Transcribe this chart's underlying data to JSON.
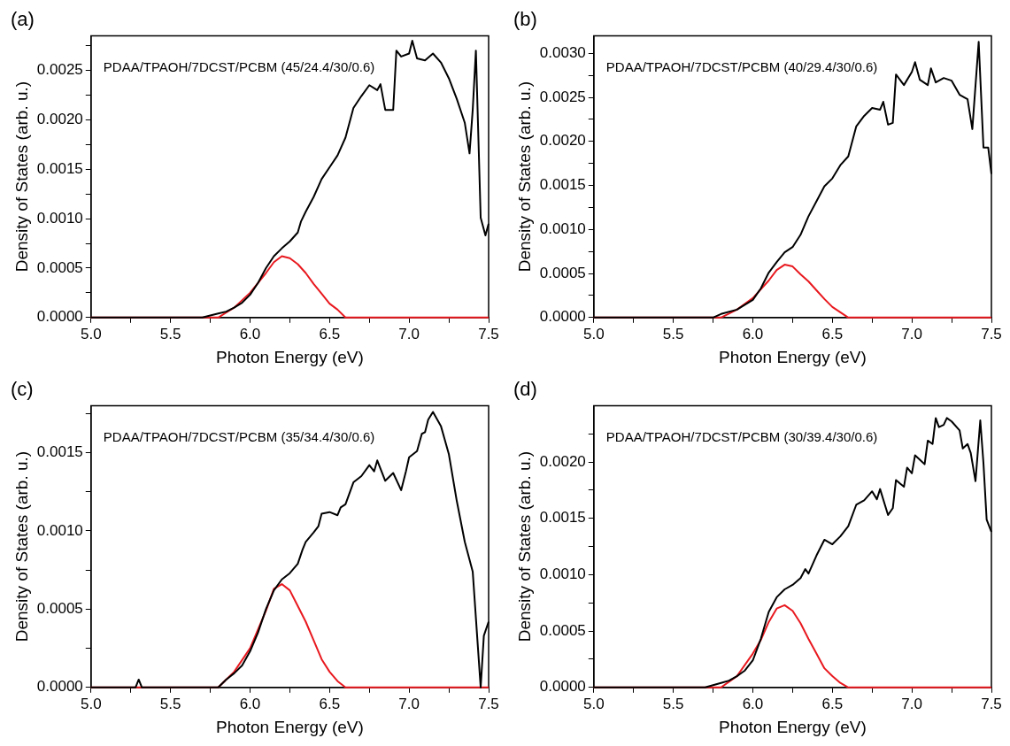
{
  "chart_data": [
    {
      "type": "line",
      "title": "(a)",
      "xlabel": "Photon Energy (eV)",
      "ylabel": "Density of States (arb. u.)",
      "annotations": [
        "PDAA/TPAOH/7DCST/PCBM (45/24.4/30/0.6)"
      ],
      "xlim": [
        5,
        7.5
      ],
      "ylim": [
        0,
        0.00285
      ],
      "xticks": [
        {
          "value": 5,
          "label": "5.0"
        },
        {
          "value": 5.25,
          "label": null
        },
        {
          "value": 5.5,
          "label": "5.5"
        },
        {
          "value": 5.75,
          "label": null
        },
        {
          "value": 6,
          "label": "6.0"
        },
        {
          "value": 6.25,
          "label": null
        },
        {
          "value": 6.5,
          "label": "6.5"
        },
        {
          "value": 6.75,
          "label": null
        },
        {
          "value": 7,
          "label": "7.0"
        },
        {
          "value": 7.25,
          "label": null
        },
        {
          "value": 7.5,
          "label": "7.5"
        }
      ],
      "yticks": [
        {
          "value": 0,
          "label": "0.0000"
        },
        {
          "value": 0.00025,
          "label": null
        },
        {
          "value": 0.0005,
          "label": "0.0005"
        },
        {
          "value": 0.00075,
          "label": null
        },
        {
          "value": 0.001,
          "label": "0.0010"
        },
        {
          "value": 0.00125,
          "label": null
        },
        {
          "value": 0.0015,
          "label": "0.0015"
        },
        {
          "value": 0.00175,
          "label": null
        },
        {
          "value": 0.002,
          "label": "0.0020"
        },
        {
          "value": 0.00225,
          "label": null
        },
        {
          "value": 0.0025,
          "label": "0.0025"
        },
        {
          "value": 0.00275,
          "label": null
        }
      ],
      "grid": false,
      "legend": false,
      "marker": "none",
      "line_style": "solid",
      "series": [
        {
          "color": "#000000",
          "x": [
            5.0,
            5.2,
            5.4,
            5.6,
            5.7,
            5.8,
            5.85,
            5.9,
            5.95,
            6.0,
            6.05,
            6.1,
            6.15,
            6.2,
            6.25,
            6.3,
            6.32,
            6.35,
            6.4,
            6.45,
            6.5,
            6.55,
            6.6,
            6.65,
            6.7,
            6.75,
            6.8,
            6.82,
            6.85,
            6.9,
            6.92,
            6.95,
            7.0,
            7.02,
            7.05,
            7.1,
            7.15,
            7.2,
            7.25,
            7.3,
            7.35,
            7.38,
            7.4,
            7.42,
            7.45,
            7.48,
            7.5
          ],
          "values": [
            0,
            0,
            0,
            0,
            0,
            4e-05,
            6e-05,
            0.0001,
            0.00015,
            0.00023,
            0.00035,
            0.0005,
            0.00062,
            0.0007,
            0.00077,
            0.00086,
            0.00097,
            0.00107,
            0.00122,
            0.0014,
            0.00152,
            0.00164,
            0.00182,
            0.00212,
            0.00224,
            0.00235,
            0.0023,
            0.00236,
            0.0021,
            0.0021,
            0.0027,
            0.00264,
            0.00267,
            0.0028,
            0.00262,
            0.0026,
            0.00267,
            0.00258,
            0.00242,
            0.00221,
            0.00197,
            0.00166,
            0.0021,
            0.0027,
            0.00101,
            0.00083,
            0.00095
          ]
        },
        {
          "color": "#e8191f",
          "x": [
            5.0,
            5.7,
            5.8,
            5.9,
            6.0,
            6.1,
            6.15,
            6.2,
            6.25,
            6.3,
            6.35,
            6.4,
            6.45,
            6.5,
            6.55,
            6.6,
            6.7,
            6.8,
            7.5
          ],
          "values": [
            0,
            0,
            0,
            0.0001,
            0.00025,
            0.00045,
            0.00056,
            0.00062,
            0.0006,
            0.00054,
            0.00045,
            0.00034,
            0.00024,
            0.00014,
            8e-05,
            0,
            0,
            0,
            0
          ]
        }
      ]
    },
    {
      "type": "line",
      "title": "(b)",
      "xlabel": "Photon Energy (eV)",
      "ylabel": "Density of States (arb. u.)",
      "annotations": [
        "PDAA/TPAOH/7DCST/PCBM (40/29.4/30/0.6)"
      ],
      "xlim": [
        5,
        7.5
      ],
      "ylim": [
        0,
        0.0032
      ],
      "xticks": [
        {
          "value": 5,
          "label": "5.0"
        },
        {
          "value": 5.25,
          "label": null
        },
        {
          "value": 5.5,
          "label": "5.5"
        },
        {
          "value": 5.75,
          "label": null
        },
        {
          "value": 6,
          "label": "6.0"
        },
        {
          "value": 6.25,
          "label": null
        },
        {
          "value": 6.5,
          "label": "6.5"
        },
        {
          "value": 6.75,
          "label": null
        },
        {
          "value": 7,
          "label": "7.0"
        },
        {
          "value": 7.25,
          "label": null
        },
        {
          "value": 7.5,
          "label": "7.5"
        }
      ],
      "yticks": [
        {
          "value": 0,
          "label": "0.0000"
        },
        {
          "value": 0.00025,
          "label": null
        },
        {
          "value": 0.0005,
          "label": "0.0005"
        },
        {
          "value": 0.00075,
          "label": null
        },
        {
          "value": 0.001,
          "label": "0.0010"
        },
        {
          "value": 0.00125,
          "label": null
        },
        {
          "value": 0.0015,
          "label": "0.0015"
        },
        {
          "value": 0.00175,
          "label": null
        },
        {
          "value": 0.002,
          "label": "0.0020"
        },
        {
          "value": 0.00225,
          "label": null
        },
        {
          "value": 0.0025,
          "label": "0.0025"
        },
        {
          "value": 0.00275,
          "label": null
        },
        {
          "value": 0.003,
          "label": "0.0030"
        }
      ],
      "grid": false,
      "legend": false,
      "marker": "none",
      "line_style": "solid",
      "series": [
        {
          "color": "#000000",
          "x": [
            5.0,
            5.6,
            5.75,
            5.8,
            5.9,
            6.0,
            6.05,
            6.1,
            6.15,
            6.2,
            6.25,
            6.3,
            6.35,
            6.4,
            6.45,
            6.5,
            6.55,
            6.6,
            6.65,
            6.7,
            6.75,
            6.8,
            6.82,
            6.85,
            6.88,
            6.9,
            6.95,
            7.0,
            7.02,
            7.05,
            7.1,
            7.12,
            7.15,
            7.2,
            7.25,
            7.3,
            7.35,
            7.38,
            7.42,
            7.45,
            7.48,
            7.5
          ],
          "values": [
            0,
            0,
            0,
            4e-05,
            9e-05,
            0.0002,
            0.00033,
            0.00051,
            0.00063,
            0.00074,
            0.0008,
            0.00094,
            0.00115,
            0.00132,
            0.00149,
            0.00158,
            0.00173,
            0.00183,
            0.00217,
            0.00229,
            0.00238,
            0.00236,
            0.00245,
            0.00219,
            0.00221,
            0.00276,
            0.00264,
            0.00279,
            0.0029,
            0.0027,
            0.00264,
            0.00283,
            0.00267,
            0.00272,
            0.00269,
            0.00253,
            0.00248,
            0.00214,
            0.00313,
            0.00193,
            0.00193,
            0.00163
          ]
        },
        {
          "color": "#e8191f",
          "x": [
            5.0,
            5.7,
            5.8,
            5.9,
            6.0,
            6.1,
            6.15,
            6.2,
            6.25,
            6.3,
            6.35,
            6.4,
            6.45,
            6.5,
            6.55,
            6.6,
            6.7,
            7.5
          ],
          "values": [
            0,
            0,
            0,
            9e-05,
            0.00022,
            0.00042,
            0.00054,
            0.0006,
            0.00058,
            0.00049,
            0.00041,
            0.00031,
            0.00021,
            0.00012,
            6e-05,
            0,
            0,
            0
          ]
        }
      ]
    },
    {
      "type": "line",
      "title": "(c)",
      "xlabel": "Photon Energy (eV)",
      "ylabel": "Density of States (arb. u.)",
      "annotations": [
        "PDAA/TPAOH/7DCST/PCBM (35/34.4/30/0.6)"
      ],
      "xlim": [
        5,
        7.5
      ],
      "ylim": [
        0,
        0.0018
      ],
      "xticks": [
        {
          "value": 5,
          "label": "5.0"
        },
        {
          "value": 5.25,
          "label": null
        },
        {
          "value": 5.5,
          "label": "5.5"
        },
        {
          "value": 5.75,
          "label": null
        },
        {
          "value": 6,
          "label": "6.0"
        },
        {
          "value": 6.25,
          "label": null
        },
        {
          "value": 6.5,
          "label": "6.5"
        },
        {
          "value": 6.75,
          "label": null
        },
        {
          "value": 7,
          "label": "7.0"
        },
        {
          "value": 7.25,
          "label": null
        },
        {
          "value": 7.5,
          "label": "7.5"
        }
      ],
      "yticks": [
        {
          "value": 0,
          "label": "0.0000"
        },
        {
          "value": 0.00025,
          "label": null
        },
        {
          "value": 0.0005,
          "label": "0.0005"
        },
        {
          "value": 0.00075,
          "label": null
        },
        {
          "value": 0.001,
          "label": "0.0010"
        },
        {
          "value": 0.00125,
          "label": null
        },
        {
          "value": 0.0015,
          "label": "0.0015"
        },
        {
          "value": 0.00175,
          "label": null
        }
      ],
      "grid": false,
      "legend": false,
      "marker": "none",
      "line_style": "solid",
      "series": [
        {
          "color": "#000000",
          "x": [
            5.0,
            5.28,
            5.3,
            5.32,
            5.6,
            5.8,
            5.85,
            5.9,
            5.95,
            6.0,
            6.05,
            6.1,
            6.15,
            6.2,
            6.25,
            6.3,
            6.33,
            6.35,
            6.4,
            6.43,
            6.45,
            6.5,
            6.55,
            6.57,
            6.6,
            6.65,
            6.7,
            6.75,
            6.78,
            6.8,
            6.85,
            6.9,
            6.95,
            6.98,
            7.0,
            7.05,
            7.08,
            7.1,
            7.12,
            7.15,
            7.2,
            7.25,
            7.3,
            7.35,
            7.4,
            7.45,
            7.47,
            7.5
          ],
          "values": [
            0,
            0,
            5e-05,
            0,
            0,
            0,
            5e-05,
            9e-05,
            0.00014,
            0.00023,
            0.00035,
            0.0005,
            0.00062,
            0.00069,
            0.00073,
            0.00079,
            0.00088,
            0.00093,
            0.00099,
            0.00103,
            0.00111,
            0.00112,
            0.0011,
            0.00115,
            0.00117,
            0.00131,
            0.00135,
            0.00142,
            0.00138,
            0.00145,
            0.00132,
            0.00137,
            0.00126,
            0.00138,
            0.00147,
            0.00151,
            0.00162,
            0.00163,
            0.00171,
            0.00176,
            0.00167,
            0.00149,
            0.00119,
            0.00093,
            0.00074,
            0,
            0.00033,
            0.00042
          ]
        },
        {
          "color": "#e8191f",
          "x": [
            5.0,
            5.7,
            5.8,
            5.9,
            6.0,
            6.1,
            6.15,
            6.2,
            6.25,
            6.3,
            6.35,
            6.4,
            6.45,
            6.5,
            6.55,
            6.6,
            6.7,
            7.5
          ],
          "values": [
            0,
            0,
            0,
            0.0001,
            0.00025,
            0.00049,
            0.00063,
            0.00066,
            0.00062,
            0.00052,
            0.00042,
            0.0003,
            0.00018,
            0.0001,
            4e-05,
            0,
            0,
            0
          ]
        }
      ]
    },
    {
      "type": "line",
      "title": "(d)",
      "xlabel": "Photon Energy (eV)",
      "ylabel": "Density of States (arb. u.)",
      "annotations": [
        "PDAA/TPAOH/7DCST/PCBM (30/39.4/30/0.6)"
      ],
      "xlim": [
        5,
        7.5
      ],
      "ylim": [
        0,
        0.0025
      ],
      "xticks": [
        {
          "value": 5,
          "label": "5.0"
        },
        {
          "value": 5.25,
          "label": null
        },
        {
          "value": 5.5,
          "label": "5.5"
        },
        {
          "value": 5.75,
          "label": null
        },
        {
          "value": 6,
          "label": "6.0"
        },
        {
          "value": 6.25,
          "label": null
        },
        {
          "value": 6.5,
          "label": "6.5"
        },
        {
          "value": 6.75,
          "label": null
        },
        {
          "value": 7,
          "label": "7.0"
        },
        {
          "value": 7.25,
          "label": null
        },
        {
          "value": 7.5,
          "label": "7.5"
        }
      ],
      "yticks": [
        {
          "value": 0,
          "label": "0.0000"
        },
        {
          "value": 0.00025,
          "label": null
        },
        {
          "value": 0.0005,
          "label": "0.0005"
        },
        {
          "value": 0.00075,
          "label": null
        },
        {
          "value": 0.001,
          "label": "0.0010"
        },
        {
          "value": 0.00125,
          "label": null
        },
        {
          "value": 0.0015,
          "label": "0.0015"
        },
        {
          "value": 0.00175,
          "label": null
        },
        {
          "value": 0.002,
          "label": "0.0020"
        },
        {
          "value": 0.00225,
          "label": null
        }
      ],
      "grid": false,
      "legend": false,
      "marker": "none",
      "line_style": "solid",
      "series": [
        {
          "color": "#000000",
          "x": [
            5.0,
            5.7,
            5.8,
            5.85,
            5.9,
            5.95,
            6.0,
            6.05,
            6.1,
            6.15,
            6.2,
            6.25,
            6.3,
            6.33,
            6.35,
            6.4,
            6.45,
            6.5,
            6.55,
            6.6,
            6.65,
            6.7,
            6.75,
            6.78,
            6.8,
            6.85,
            6.88,
            6.9,
            6.95,
            6.97,
            7.0,
            7.02,
            7.05,
            7.08,
            7.1,
            7.13,
            7.15,
            7.17,
            7.2,
            7.22,
            7.25,
            7.3,
            7.32,
            7.35,
            7.37,
            7.4,
            7.43,
            7.45,
            7.47,
            7.5
          ],
          "values": [
            0,
            0,
            4e-05,
            6e-05,
            0.0001,
            0.00015,
            0.00024,
            0.00043,
            0.00067,
            0.0008,
            0.00087,
            0.00091,
            0.00097,
            0.00105,
            0.00101,
            0.00117,
            0.00131,
            0.00127,
            0.00134,
            0.00143,
            0.00162,
            0.00166,
            0.00174,
            0.00167,
            0.00176,
            0.00153,
            0.00159,
            0.00184,
            0.00178,
            0.00195,
            0.0019,
            0.00206,
            0.00202,
            0.00198,
            0.00219,
            0.00216,
            0.00239,
            0.00231,
            0.00233,
            0.00239,
            0.00236,
            0.00228,
            0.00212,
            0.00216,
            0.00208,
            0.00183,
            0.00237,
            0.00199,
            0.00149,
            0.00138
          ]
        },
        {
          "color": "#e8191f",
          "x": [
            5.0,
            5.7,
            5.8,
            5.9,
            6.0,
            6.05,
            6.1,
            6.15,
            6.2,
            6.25,
            6.3,
            6.35,
            6.4,
            6.45,
            6.5,
            6.55,
            6.6,
            6.7,
            7.5
          ],
          "values": [
            0,
            0,
            0,
            0.0001,
            0.0003,
            0.00042,
            0.00058,
            0.0007,
            0.00073,
            0.00068,
            0.00057,
            0.00043,
            0.0003,
            0.00017,
            0.0001,
            4e-05,
            0,
            0,
            0
          ]
        }
      ]
    }
  ]
}
